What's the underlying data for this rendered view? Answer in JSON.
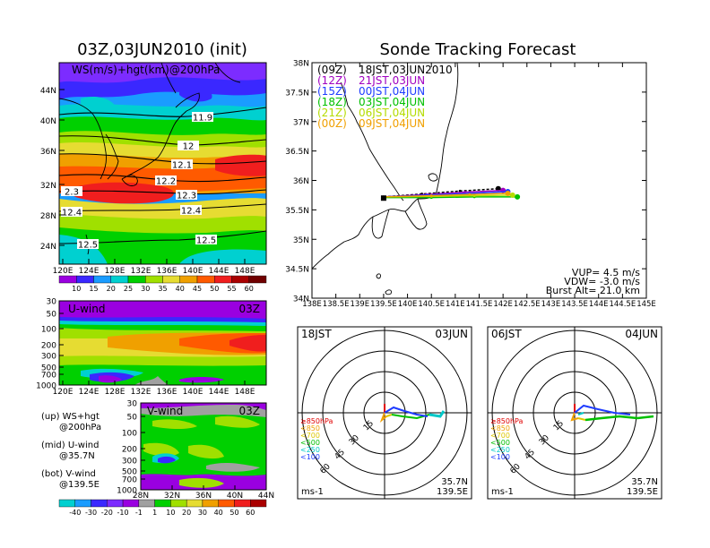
{
  "colors": {
    "c1": "#9a00e0",
    "c2": "#3a28ff",
    "c3": "#1a9cff",
    "c4": "#00d0d0",
    "c5": "#00d000",
    "c6": "#a0e000",
    "c7": "#e6dc32",
    "c8": "#f0a000",
    "c9": "#ff5a00",
    "c10": "#f01e1e",
    "c11": "#aa0000",
    "track_12z": "#a000c0",
    "track_15z": "#1e3cff",
    "track_18z": "#00c000",
    "track_21z": "#b4dc00",
    "track_00z": "#f0a000",
    "track_09z": "#000000",
    "hodo_blue": "#1e3cff",
    "hodo_cyan": "#00c8c8",
    "hodo_green": "#00c000",
    "hodo_yellow": "#dcc800",
    "hodo_red": "#e00000",
    "hodo_orange": "#f0a000"
  },
  "main_map": {
    "title": "03Z,03JUN2010 (init)",
    "label": "WS(m/s)+hgt(km)@200hPa",
    "lat_ticks": [
      "44N",
      "40N",
      "36N",
      "32N",
      "28N",
      "24N"
    ],
    "lon_ticks": [
      "120E",
      "124E",
      "128E",
      "132E",
      "136E",
      "140E",
      "144E",
      "148E"
    ],
    "contour_labels": [
      "11.9",
      "12",
      "12.1",
      "12.2",
      "12.3",
      "2.3",
      "12.4",
      "12.4",
      "12.5",
      "12.5"
    ],
    "colorbar_ticks": [
      "10",
      "15",
      "20",
      "25",
      "30",
      "35",
      "40",
      "45",
      "50",
      "55",
      "60"
    ]
  },
  "uwind": {
    "label": "U-wind",
    "time": "03Z",
    "p_ticks": [
      "30",
      "50",
      "100",
      "200",
      "300",
      "500",
      "700",
      "1000"
    ],
    "lon_ticks": [
      "120E",
      "124E",
      "128E",
      "132E",
      "136E",
      "140E",
      "144E",
      "148E"
    ]
  },
  "vwind": {
    "label": "V-wind",
    "time": "03Z",
    "p_ticks": [
      "30",
      "50",
      "100",
      "200",
      "300",
      "500",
      "700",
      "1000"
    ],
    "lat_ticks": [
      "28N",
      "32N",
      "36N",
      "40N",
      "44N"
    ],
    "colorbar_ticks": [
      "-40",
      "-30",
      "-20",
      "-10",
      "-1",
      "1",
      "10",
      "20",
      "30",
      "40",
      "50",
      "60"
    ]
  },
  "legend_notes": [
    "(up) WS+hgt",
    "@200hPa",
    "(mid) U-wind",
    "@35.7N",
    "(bot) V-wind",
    "@139.5E"
  ],
  "tracking": {
    "title": "Sonde Tracking Forecast",
    "lat_ticks": [
      "38N",
      "37.5N",
      "37N",
      "36.5N",
      "36N",
      "35.5N",
      "35N",
      "34.5N",
      "34N"
    ],
    "lon_ticks": [
      "138E",
      "138.5E",
      "139E",
      "139.5E",
      "140E",
      "140.5E",
      "141E",
      "141.5E",
      "142E",
      "142.5E",
      "143E",
      "143.5E",
      "144E",
      "144.5E",
      "145E"
    ],
    "launches": [
      {
        "code": "(09Z)",
        "time": "18JST,03JUN2010",
        "color": "#000000"
      },
      {
        "code": "(12Z)",
        "time": "21JST,03JUN",
        "color": "#a000c0"
      },
      {
        "code": "(15Z)",
        "time": "00JST,04JUN",
        "color": "#1e3cff"
      },
      {
        "code": "(18Z)",
        "time": "03JST,04JUN",
        "color": "#00c000"
      },
      {
        "code": "(21Z)",
        "time": "06JST,04JUN",
        "color": "#b4dc00"
      },
      {
        "code": "(00Z)",
        "time": "09JST,04JUN",
        "color": "#f0a000"
      }
    ],
    "vup": "VUP= 4.5 m/s",
    "vdw": "VDW= -3.0 m/s",
    "burst": "Burst Alt= 21.0 km"
  },
  "chart_data": {
    "type": "line",
    "title": "Sonde Tracking Forecast",
    "xlim": [
      138,
      145
    ],
    "ylim": [
      34,
      38
    ],
    "launch_point": {
      "lon": 139.5,
      "lat": 35.7
    },
    "series": [
      {
        "name": "(09Z) 18JST,03JUN2010",
        "x": [
          139.5,
          140.3,
          141.1,
          141.9
        ],
        "y": [
          35.72,
          35.77,
          35.82,
          35.86
        ]
      },
      {
        "name": "(12Z) 21JST,03JUN",
        "x": [
          139.5,
          140.4,
          141.2,
          142.0
        ],
        "y": [
          35.72,
          35.76,
          35.8,
          35.83
        ]
      },
      {
        "name": "(15Z) 00JST,04JUN",
        "x": [
          139.5,
          140.4,
          141.3,
          142.1
        ],
        "y": [
          35.72,
          35.75,
          35.78,
          35.81
        ]
      },
      {
        "name": "(18Z) 03JST,04JUN",
        "x": [
          139.5,
          140.5,
          141.4,
          142.3
        ],
        "y": [
          35.71,
          35.71,
          35.72,
          35.72
        ]
      },
      {
        "name": "(21Z) 06JST,04JUN",
        "x": [
          139.5,
          140.5,
          141.4,
          142.2
        ],
        "y": [
          35.72,
          35.73,
          35.74,
          35.75
        ]
      },
      {
        "name": "(00Z) 09JST,04JUN",
        "x": [
          139.5,
          140.5,
          141.3,
          142.1
        ],
        "y": [
          35.72,
          35.74,
          35.76,
          35.78
        ]
      }
    ]
  },
  "hodo1": {
    "left": "18JST",
    "right": "03JUN",
    "ring_labels": [
      "15",
      "30",
      "45",
      "60"
    ],
    "lat": "35.7N",
    "lon": "139.5E",
    "unit": "ms-1"
  },
  "hodo2": {
    "left": "06JST",
    "right": "04JUN",
    "ring_labels": [
      "15",
      "30",
      "45",
      "60"
    ],
    "lat": "35.7N",
    "lon": "139.5E",
    "unit": "ms-1"
  },
  "hodo_legend": [
    "≥850hPa",
    "<850",
    "<700",
    "<500",
    "<250",
    "<100"
  ]
}
